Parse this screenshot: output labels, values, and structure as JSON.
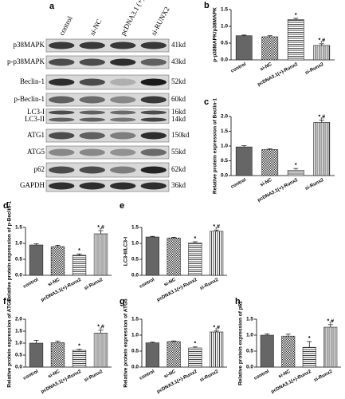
{
  "blot": {
    "panel": "a",
    "lanes": [
      "control",
      "si-NC",
      "pcDNA3.1 (+)-RUNX2",
      "si-RUNX2"
    ],
    "rows": [
      {
        "protein": "p38MAPK",
        "size": "41kd"
      },
      {
        "protein": "p-p38MAPK",
        "size": "43kd"
      },
      {
        "protein": "Beclin-1",
        "size": "52kd"
      },
      {
        "protein": "p-Beclin-1",
        "size": "60kd"
      },
      {
        "protein": "LC3-I",
        "size": "16kd"
      },
      {
        "protein": "LC3-II",
        "size": "14kd"
      },
      {
        "protein": "ATG1",
        "size": "150kd"
      },
      {
        "protein": "ATG5",
        "size": "55kd"
      },
      {
        "protein": "p62",
        "size": "62kd"
      },
      {
        "protein": "GAPDH",
        "size": "36kd"
      }
    ]
  },
  "chart_data": [
    {
      "type": "bar",
      "panel": "b",
      "y_label": "p-p38MAPK/p38MAPK",
      "categories": [
        "control",
        "si-NC",
        "pcDNA3.1(+)-Runx2",
        "si-Runx2"
      ],
      "values": [
        0.72,
        0.69,
        1.2,
        0.43
      ],
      "errors": [
        0.02,
        0.03,
        0.04,
        0.05
      ],
      "annotations": [
        null,
        null,
        "*",
        "*,#"
      ],
      "ylim": [
        0,
        1.5
      ],
      "yticks": [
        {
          "value": 0,
          "label": "0.0"
        },
        {
          "value": 0.5,
          "label": "0.5"
        },
        {
          "value": 1,
          "label": "1.0"
        },
        {
          "value": 1.5,
          "label": "1.5"
        }
      ]
    },
    {
      "type": "bar",
      "panel": "c",
      "y_label": "Relative protein expression of Beclin-1",
      "categories": [
        "control",
        "si-NC",
        "pcDNA3.1(+)-Runx2",
        "si-Runx2"
      ],
      "values": [
        0.97,
        0.88,
        0.18,
        1.8
      ],
      "errors": [
        0.04,
        0.03,
        0.06,
        0.08
      ],
      "annotations": [
        null,
        null,
        "*",
        "*,#"
      ],
      "ylim": [
        0,
        2
      ],
      "yticks": [
        {
          "value": 0,
          "label": "0.0"
        },
        {
          "value": 0.5,
          "label": "0.5"
        },
        {
          "value": 1,
          "label": "1.0"
        },
        {
          "value": 1.5,
          "label": "1.5"
        },
        {
          "value": 2,
          "label": "2.0"
        }
      ]
    },
    {
      "type": "bar",
      "panel": "d",
      "y_label": "Relative protein expression of p-Beclin-1",
      "categories": [
        "control",
        "si-NC",
        "pcDNA3.1(+)-Runx2",
        "si-Runx2"
      ],
      "values": [
        0.95,
        0.9,
        0.63,
        1.3
      ],
      "errors": [
        0.04,
        0.04,
        0.04,
        0.1
      ],
      "annotations": [
        null,
        null,
        "*",
        "*,#"
      ],
      "ylim": [
        0,
        1.5
      ],
      "yticks": [
        {
          "value": 0,
          "label": "0.0"
        },
        {
          "value": 0.5,
          "label": "0.5"
        },
        {
          "value": 1,
          "label": "1.0"
        },
        {
          "value": 1.5,
          "label": "1.5"
        }
      ]
    },
    {
      "type": "bar",
      "panel": "e",
      "y_label": "LC3-II/LC3-I",
      "categories": [
        "control",
        "si-NC",
        "pcDNA3.1(+)-Runx2",
        "si-Runx2"
      ],
      "values": [
        1.2,
        1.17,
        1.02,
        1.38
      ],
      "errors": [
        0.02,
        0.02,
        0.03,
        0.04
      ],
      "annotations": [
        null,
        null,
        "*",
        "*,#"
      ],
      "ylim": [
        0,
        1.5
      ],
      "yticks": [
        {
          "value": 0,
          "label": "0.0"
        },
        {
          "value": 0.5,
          "label": "0.5"
        },
        {
          "value": 1,
          "label": "1.0"
        },
        {
          "value": 1.5,
          "label": "1.5"
        }
      ]
    },
    {
      "type": "bar",
      "panel": "f",
      "y_label": "Relative protein expression of ATG1",
      "categories": [
        "control",
        "si-NC",
        "pcDNA3.1(+)-Runx2",
        "si-Runx2"
      ],
      "values": [
        1.0,
        1.02,
        0.7,
        1.42
      ],
      "errors": [
        0.12,
        0.06,
        0.04,
        0.12
      ],
      "annotations": [
        null,
        null,
        "*",
        "*,#"
      ],
      "ylim": [
        0,
        2
      ],
      "yticks": [
        {
          "value": 0,
          "label": "0.0"
        },
        {
          "value": 0.5,
          "label": "0.5"
        },
        {
          "value": 1,
          "label": "1.0"
        },
        {
          "value": 1.5,
          "label": "1.5"
        },
        {
          "value": 2,
          "label": "2.0"
        }
      ]
    },
    {
      "type": "bar",
      "panel": "g",
      "y_label": "Relative protein expression of ATG5",
      "categories": [
        "control",
        "si-NC",
        "pcDNA3.1(+)-Runx2",
        "si-Runx2"
      ],
      "values": [
        0.76,
        0.8,
        0.6,
        1.1
      ],
      "errors": [
        0.02,
        0.02,
        0.03,
        0.03
      ],
      "annotations": [
        null,
        null,
        "*",
        "*,#"
      ],
      "ylim": [
        0,
        1.5
      ],
      "yticks": [
        {
          "value": 0,
          "label": "0.0"
        },
        {
          "value": 0.5,
          "label": "0.5"
        },
        {
          "value": 1,
          "label": "1.0"
        },
        {
          "value": 1.5,
          "label": "1.5"
        }
      ]
    },
    {
      "type": "bar",
      "panel": "h",
      "y_label": "Relative protein expression of p62",
      "categories": [
        "control",
        "si-NC",
        "pcDNA3.1(+)-Runx2",
        "si-Runx2"
      ],
      "values": [
        1.0,
        0.97,
        0.62,
        1.25
      ],
      "errors": [
        0.04,
        0.06,
        0.18,
        0.08
      ],
      "annotations": [
        null,
        null,
        "*",
        "*,#"
      ],
      "ylim": [
        0,
        1.5
      ],
      "yticks": [
        {
          "value": 0,
          "label": "0.0"
        },
        {
          "value": 0.5,
          "label": "0.5"
        },
        {
          "value": 1,
          "label": "1.0"
        },
        {
          "value": 1.5,
          "label": "1.5"
        }
      ]
    }
  ]
}
